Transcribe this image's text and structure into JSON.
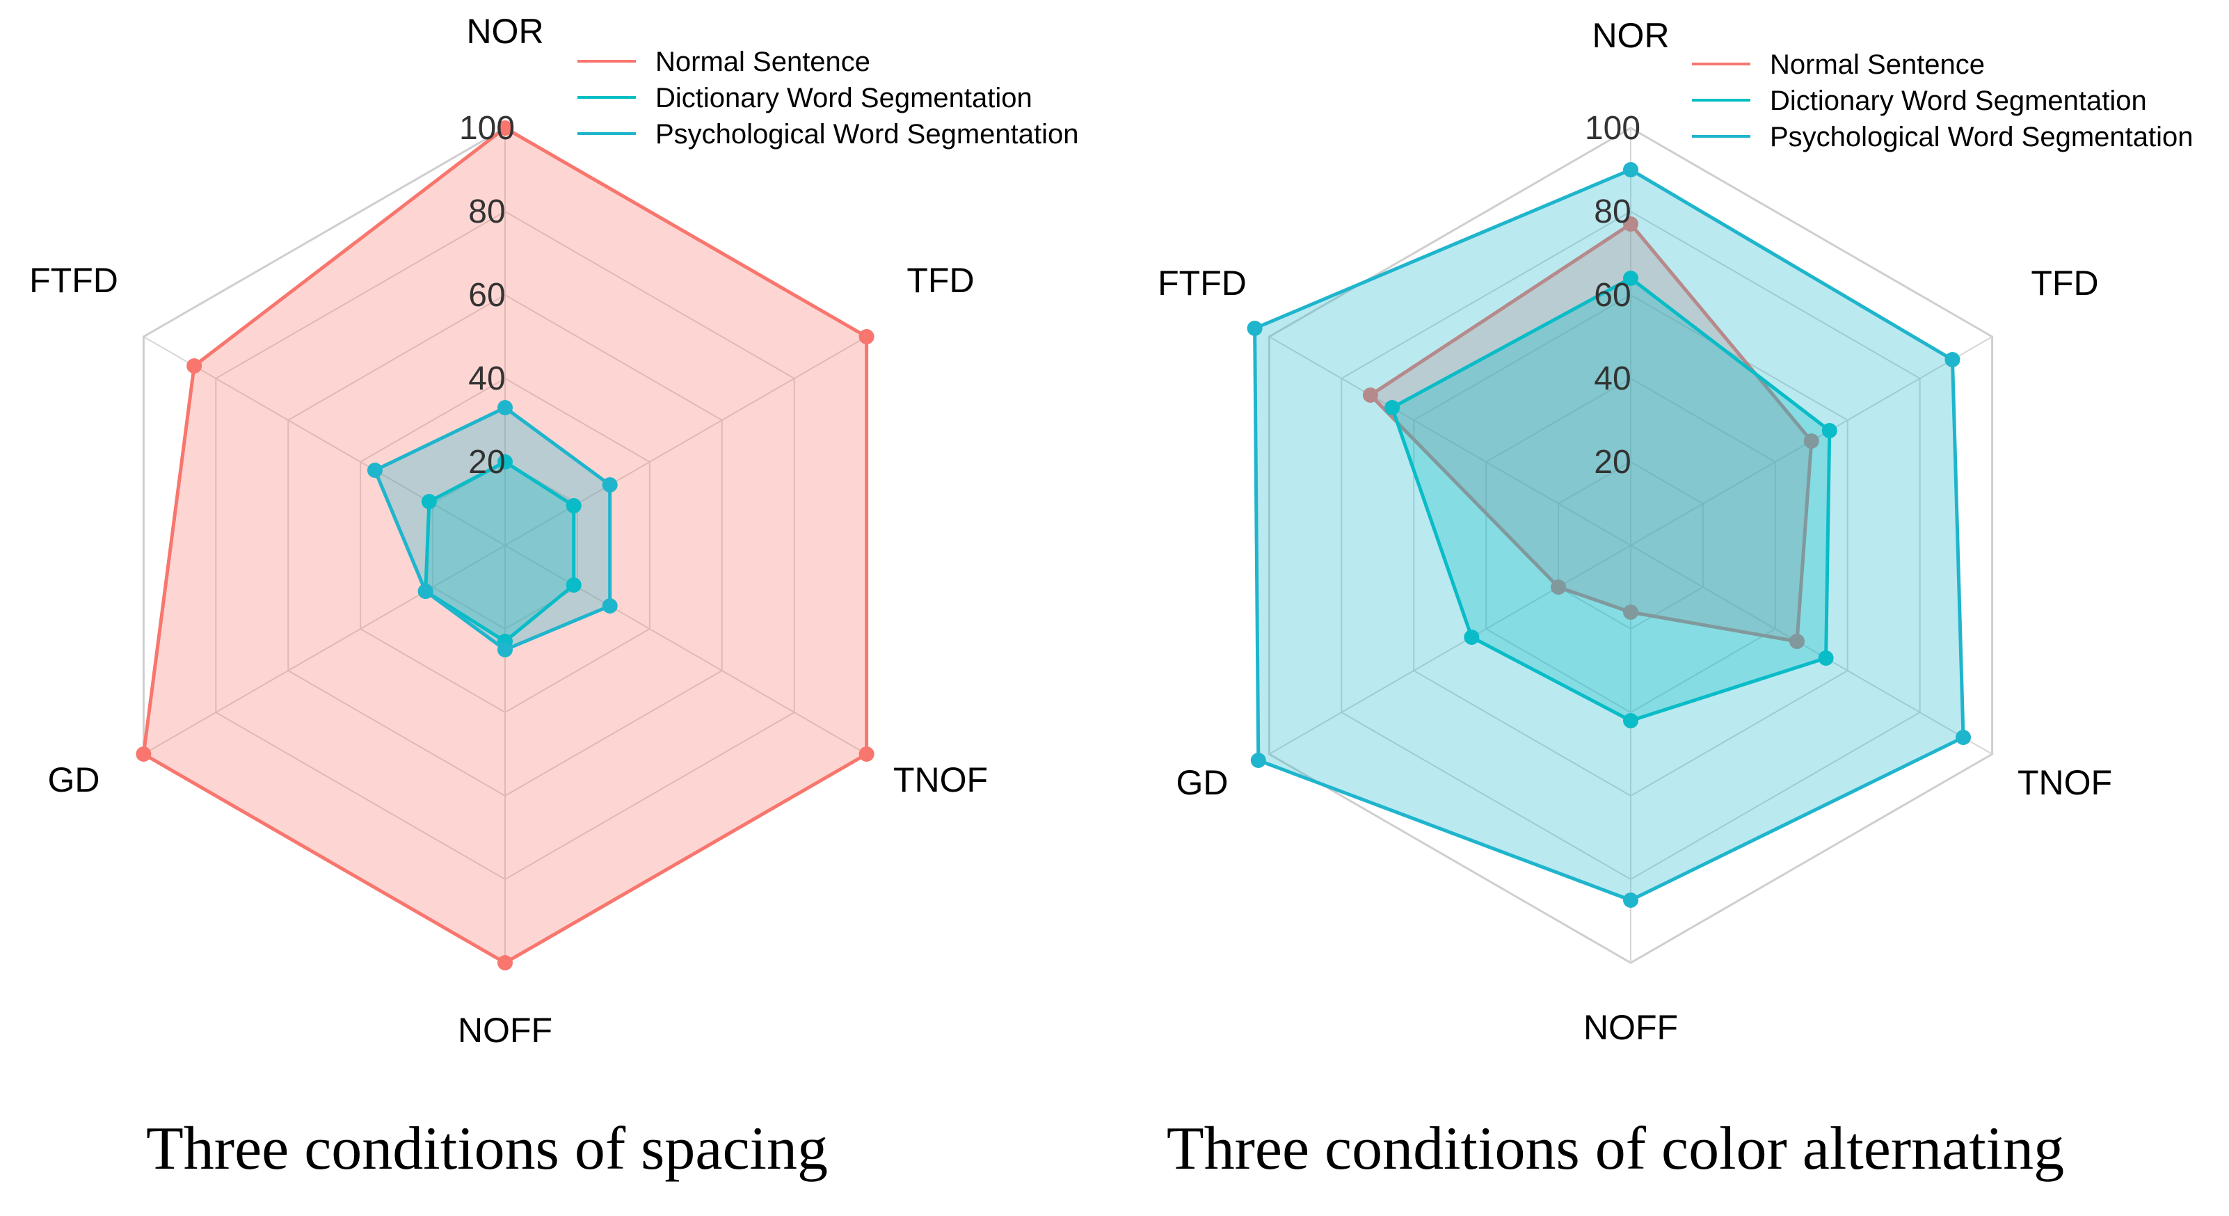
{
  "chart_data": [
    {
      "type": "radar",
      "caption": "Three conditions of spacing",
      "axes": [
        "NOR",
        "TFD",
        "TNOF",
        "NOFF",
        "GD",
        "FTFD"
      ],
      "rlim": [
        0,
        100
      ],
      "tick_labels": [
        "20",
        "40",
        "60",
        "80",
        "100"
      ],
      "tick_values": [
        20,
        40,
        60,
        80,
        100
      ],
      "legend_position": "top-right",
      "series": [
        {
          "name": "Normal Sentence",
          "color": "#F8766D",
          "values": [
            100,
            100,
            100,
            100,
            100,
            86
          ]
        },
        {
          "name": "Dictionary Word Segmentation",
          "color": "#00BFC4",
          "values": [
            20,
            19,
            19,
            23,
            22,
            21
          ]
        },
        {
          "name": "Psychological Word Segmentation",
          "color": "#1FB5CC",
          "values": [
            33,
            29,
            29,
            25,
            22,
            36
          ]
        }
      ]
    },
    {
      "type": "radar",
      "caption": "Three conditions of color alternating",
      "axes": [
        "NOR",
        "TFD",
        "TNOF",
        "NOFF",
        "GD",
        "FTFD"
      ],
      "rlim": [
        0,
        100
      ],
      "tick_labels": [
        "20",
        "40",
        "60",
        "80",
        "100"
      ],
      "tick_values": [
        20,
        40,
        60,
        80,
        100
      ],
      "legend_position": "top-right",
      "series": [
        {
          "name": "Normal Sentence",
          "color": "#F8766D",
          "values": [
            77,
            50,
            46,
            16,
            20,
            72
          ]
        },
        {
          "name": "Dictionary Word Segmentation",
          "color": "#00BFC4",
          "values": [
            64,
            55,
            54,
            42,
            44,
            66
          ]
        },
        {
          "name": "Psychological Word Segmentation",
          "color": "#1FB5CC",
          "values": [
            90,
            89,
            92,
            85,
            103,
            104
          ]
        }
      ]
    }
  ]
}
